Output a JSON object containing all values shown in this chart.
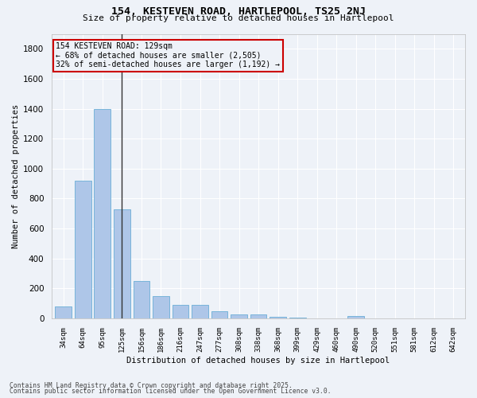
{
  "title_line1": "154, KESTEVEN ROAD, HARTLEPOOL, TS25 2NJ",
  "title_line2": "Size of property relative to detached houses in Hartlepool",
  "xlabel": "Distribution of detached houses by size in Hartlepool",
  "ylabel": "Number of detached properties",
  "categories": [
    "34sqm",
    "64sqm",
    "95sqm",
    "125sqm",
    "156sqm",
    "186sqm",
    "216sqm",
    "247sqm",
    "277sqm",
    "308sqm",
    "338sqm",
    "368sqm",
    "399sqm",
    "429sqm",
    "460sqm",
    "490sqm",
    "520sqm",
    "551sqm",
    "581sqm",
    "612sqm",
    "642sqm"
  ],
  "values": [
    82,
    920,
    1400,
    730,
    248,
    150,
    88,
    88,
    48,
    25,
    28,
    12,
    5,
    0,
    0,
    18,
    0,
    0,
    0,
    0,
    0
  ],
  "bar_color": "#aec6e8",
  "bar_edgecolor": "#6aaed6",
  "highlight_bar_index": 3,
  "highlight_line_color": "#333333",
  "annotation_text": "154 KESTEVEN ROAD: 129sqm\n← 68% of detached houses are smaller (2,505)\n32% of semi-detached houses are larger (1,192) →",
  "annotation_box_color": "#cc0000",
  "ylim": [
    0,
    1900
  ],
  "yticks": [
    0,
    200,
    400,
    600,
    800,
    1000,
    1200,
    1400,
    1600,
    1800
  ],
  "background_color": "#eef2f8",
  "grid_color": "#ffffff",
  "footer_line1": "Contains HM Land Registry data © Crown copyright and database right 2025.",
  "footer_line2": "Contains public sector information licensed under the Open Government Licence v3.0."
}
